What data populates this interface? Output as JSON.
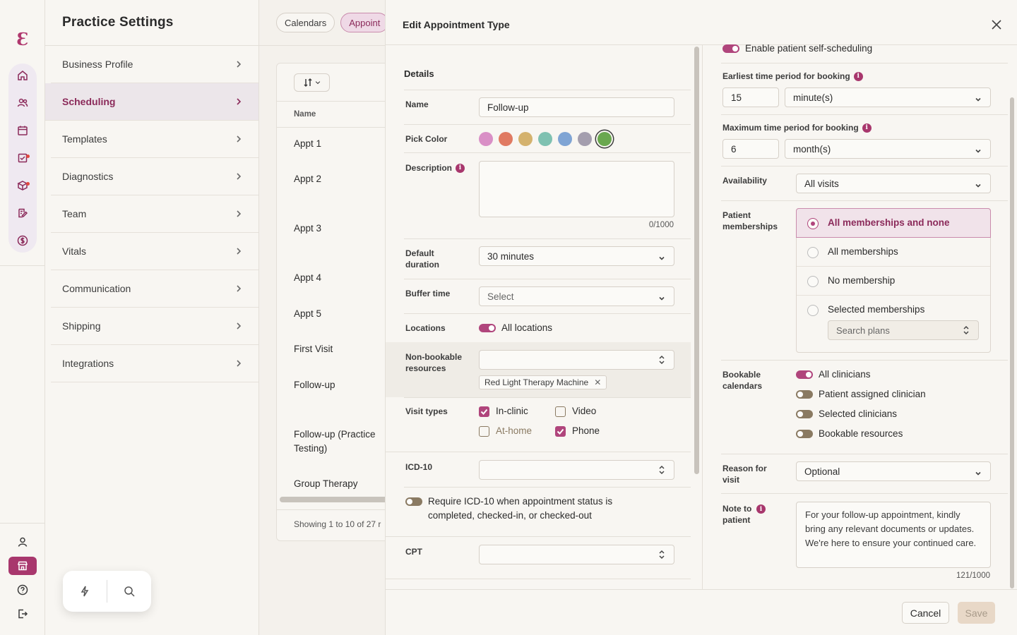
{
  "rail": {
    "logo": "Ɛ",
    "nav_icons": [
      "home-icon",
      "patients-icon",
      "calendar-icon",
      "tasks-icon",
      "inventory-icon",
      "notes-icon",
      "billing-icon"
    ],
    "bottom_icons": [
      "user-icon",
      "store-icon",
      "help-icon",
      "logout-icon"
    ]
  },
  "settings": {
    "title": "Practice Settings",
    "items": [
      {
        "label": "Business Profile"
      },
      {
        "label": "Scheduling"
      },
      {
        "label": "Templates"
      },
      {
        "label": "Diagnostics"
      },
      {
        "label": "Team"
      },
      {
        "label": "Vitals"
      },
      {
        "label": "Communication"
      },
      {
        "label": "Shipping"
      },
      {
        "label": "Integrations"
      }
    ],
    "active_index": 1
  },
  "background": {
    "tabs": [
      "Calendars",
      "Appoint"
    ],
    "list_header": "Name",
    "rows": [
      "Appt 1",
      "Appt 2",
      "Appt 3",
      "Appt 4",
      "Appt 5",
      "First Visit",
      "Follow-up",
      "Follow-up (Practice Testing)",
      "Group Therapy"
    ],
    "footer": "Showing 1 to 10 of 27 r"
  },
  "modal": {
    "title": "Edit Appointment Type",
    "details_heading": "Details",
    "name_label": "Name",
    "name_value": "Follow-up",
    "color_label": "Pick Color",
    "colors": [
      "#d98fc6",
      "#e07a62",
      "#d4b26e",
      "#7fc1b1",
      "#7fa4d4",
      "#a49eae",
      "#6aa84f"
    ],
    "selected_color_index": 6,
    "description_label": "Description",
    "description_value": "",
    "description_counter": "0/1000",
    "duration_label": "Default duration",
    "duration_value": "30 minutes",
    "buffer_label": "Buffer time",
    "buffer_value": "Select",
    "locations_label": "Locations",
    "locations_toggle": "All locations",
    "resources_label": "Non-bookable resources",
    "resources_chip": "Red Light Therapy Machine",
    "visit_types_label": "Visit types",
    "visit_types": [
      {
        "label": "In-clinic",
        "checked": true
      },
      {
        "label": "Video",
        "checked": false
      },
      {
        "label": "At-home",
        "checked": false
      },
      {
        "label": "Phone",
        "checked": true
      }
    ],
    "icd_label": "ICD-10",
    "icd_require_text": "Require ICD-10 when appointment status is completed, checked-in, or checked-out",
    "cpt_label": "CPT",
    "self_scheduling": "Enable patient self-scheduling",
    "earliest_label": "Earliest time period for booking",
    "earliest_value": "15",
    "earliest_unit": "minute(s)",
    "maximum_label": "Maximum time period for booking",
    "maximum_value": "6",
    "maximum_unit": "month(s)",
    "availability_label": "Availability",
    "availability_value": "All visits",
    "memberships_label": "Patient memberships",
    "memberships_options": [
      "All memberships and none",
      "All memberships",
      "No membership",
      "Selected memberships"
    ],
    "memberships_selected_index": 0,
    "search_plans_placeholder": "Search plans",
    "calendars_label": "Bookable calendars",
    "calendars_toggles": [
      {
        "label": "All clinicians",
        "on": true
      },
      {
        "label": "Patient assigned clinician",
        "on": false
      },
      {
        "label": "Selected clinicians",
        "on": false
      },
      {
        "label": "Bookable resources",
        "on": false
      }
    ],
    "reason_label": "Reason for visit",
    "reason_value": "Optional",
    "note_label": "Note to patient",
    "note_value": "For your follow-up appointment, kindly bring any relevant documents or updates. We're here to ensure your continued care.",
    "note_counter": "121/1000",
    "cancel_label": "Cancel",
    "save_label": "Save"
  }
}
